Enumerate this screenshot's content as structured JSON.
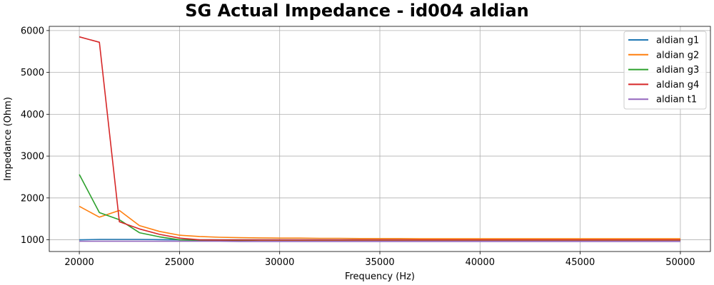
{
  "chart_data": {
    "type": "line",
    "title": "SG Actual Impedance - id004 aldian",
    "xlabel": "Frequency (Hz)",
    "ylabel": "Impedance (Ohm)",
    "xlim": [
      18500,
      51500
    ],
    "ylim": [
      720,
      6100
    ],
    "xticks": [
      20000,
      25000,
      30000,
      35000,
      40000,
      45000,
      50000
    ],
    "yticks": [
      1000,
      2000,
      3000,
      4000,
      5000,
      6000
    ],
    "grid": true,
    "legend_position": "top-right",
    "x": [
      20000,
      21000,
      22000,
      23000,
      24000,
      25000,
      26000,
      27000,
      28000,
      29000,
      30000,
      31000,
      32000,
      33000,
      34000,
      35000,
      36000,
      37000,
      38000,
      39000,
      40000,
      41000,
      42000,
      43000,
      44000,
      45000,
      46000,
      47000,
      48000,
      49000,
      50000
    ],
    "series": [
      {
        "name": "aldian g1",
        "color": "#1f77b4",
        "values": [
          1000,
          1010,
          1010,
          1010,
          1005,
          1000,
          1000,
          1000,
          1000,
          1000,
          1000,
          1000,
          1000,
          1000,
          1000,
          1000,
          1000,
          1000,
          1000,
          1000,
          1000,
          1000,
          1000,
          1000,
          1000,
          1000,
          1000,
          1000,
          1000,
          1000,
          1000
        ]
      },
      {
        "name": "aldian g2",
        "color": "#ff7f0e",
        "values": [
          1800,
          1540,
          1700,
          1340,
          1200,
          1110,
          1080,
          1060,
          1050,
          1045,
          1040,
          1040,
          1035,
          1035,
          1030,
          1030,
          1030,
          1025,
          1025,
          1025,
          1025,
          1025,
          1025,
          1025,
          1025,
          1025,
          1025,
          1025,
          1025,
          1025,
          1025
        ]
      },
      {
        "name": "aldian g3",
        "color": "#2ca02c",
        "values": [
          2560,
          1650,
          1480,
          1170,
          1070,
          1000,
          985,
          985,
          985,
          990,
          990,
          990,
          990,
          990,
          990,
          990,
          990,
          990,
          990,
          990,
          990,
          990,
          990,
          990,
          990,
          990,
          990,
          990,
          990,
          990,
          990
        ]
      },
      {
        "name": "aldian g4",
        "color": "#d62728",
        "values": [
          5850,
          5720,
          1430,
          1260,
          1130,
          1040,
          1000,
          995,
          995,
          995,
          995,
          995,
          995,
          995,
          995,
          995,
          995,
          995,
          995,
          995,
          995,
          995,
          995,
          995,
          995,
          995,
          995,
          995,
          995,
          995,
          995
        ]
      },
      {
        "name": "aldian t1",
        "color": "#9467bd",
        "values": [
          965,
          965,
          965,
          965,
          965,
          965,
          965,
          965,
          960,
          960,
          960,
          960,
          960,
          960,
          960,
          960,
          960,
          960,
          960,
          960,
          960,
          960,
          960,
          960,
          960,
          960,
          960,
          960,
          960,
          960,
          960
        ]
      }
    ]
  }
}
